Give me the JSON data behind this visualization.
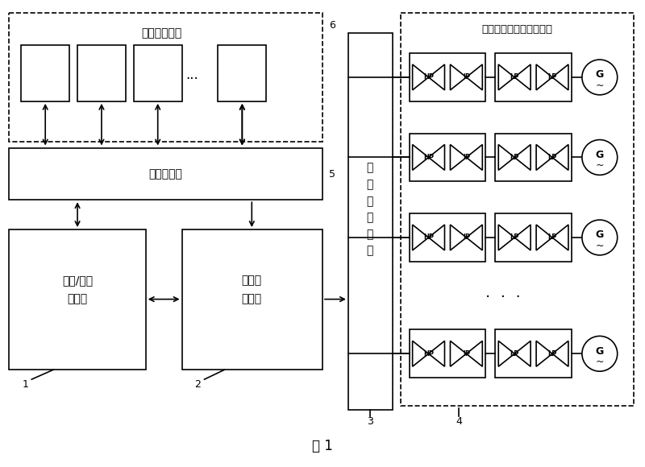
{
  "title": "图 1",
  "left_panel_label": "用户端浏览器",
  "webserver_label": "网页服务器",
  "calc_server_label": "计算/应用\n服务器",
  "db_server_label": "数据库\n服务器",
  "ext_interface_label": "外\n部\n系\n统\n接\n口",
  "right_panel_label": "高温部件温度监测热电偶",
  "label1": "1",
  "label2": "2",
  "label3": "3",
  "label4": "4",
  "label5": "5",
  "label6": "6",
  "bg_color": "#ffffff",
  "font_size_main": 10,
  "font_size_label": 9,
  "font_size_small": 7
}
